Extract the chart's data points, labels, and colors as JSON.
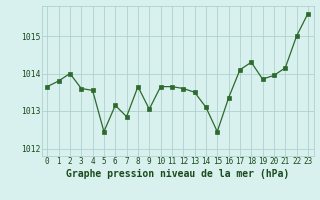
{
  "x": [
    0,
    1,
    2,
    3,
    4,
    5,
    6,
    7,
    8,
    9,
    10,
    11,
    12,
    13,
    14,
    15,
    16,
    17,
    18,
    19,
    20,
    21,
    22,
    23
  ],
  "y": [
    1013.65,
    1013.8,
    1014.0,
    1013.6,
    1013.55,
    1012.45,
    1013.15,
    1012.85,
    1013.65,
    1013.05,
    1013.65,
    1013.65,
    1013.6,
    1013.5,
    1013.1,
    1012.45,
    1013.35,
    1014.1,
    1014.3,
    1013.85,
    1013.95,
    1014.15,
    1015.0,
    1015.6
  ],
  "line_color": "#2d6a2d",
  "marker_color": "#2d6a2d",
  "bg_color": "#d8f0ee",
  "grid_color": "#a8ccc8",
  "title": "Graphe pression niveau de la mer (hPa)",
  "ylim": [
    1011.8,
    1015.8
  ],
  "yticks": [
    1012,
    1013,
    1014,
    1015
  ],
  "xticks": [
    0,
    1,
    2,
    3,
    4,
    5,
    6,
    7,
    8,
    9,
    10,
    11,
    12,
    13,
    14,
    15,
    16,
    17,
    18,
    19,
    20,
    21,
    22,
    23
  ],
  "tick_fontsize": 5.5,
  "title_fontsize": 7.0,
  "title_color": "#1a4a1a"
}
